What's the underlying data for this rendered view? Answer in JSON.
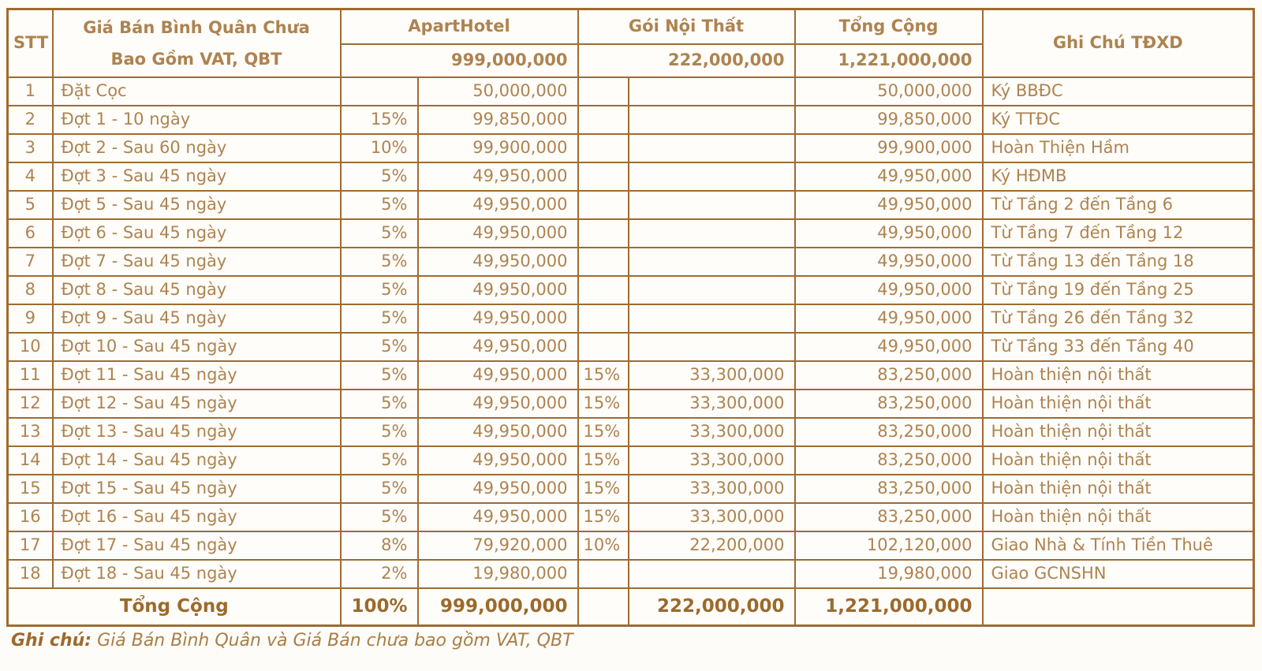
{
  "colors": {
    "border": "#9e6c30",
    "header_text": "#9c6a2b",
    "body_text": "#ae8350",
    "background": "#fefdfa"
  },
  "table": {
    "header": {
      "stt": "STT",
      "desc_line1": "Giá Bán Bình Quân Chưa",
      "desc_line2": "Bao Gồm VAT, QBT",
      "aparthotel_label": "ApartHotel",
      "aparthotel_total": "999,000,000",
      "interior_label": "Gói Nội Thất",
      "interior_total": "222,000,000",
      "grand_label": "Tổng Cộng",
      "grand_total": "1,221,000,000",
      "note_label": "Ghi Chú TĐXD"
    },
    "rows": [
      {
        "stt": "1",
        "desc": "Đặt Cọc",
        "ah_pct": "",
        "ah_amt": "50,000,000",
        "nt_pct": "",
        "nt_amt": "",
        "total": "50,000,000",
        "note": "Ký BBĐC"
      },
      {
        "stt": "2",
        "desc": "Đợt 1 - 10 ngày",
        "ah_pct": "15%",
        "ah_amt": "99,850,000",
        "nt_pct": "",
        "nt_amt": "",
        "total": "99,850,000",
        "note": "Ký TTĐC"
      },
      {
        "stt": "3",
        "desc": "Đợt 2 - Sau 60 ngày",
        "ah_pct": "10%",
        "ah_amt": "99,900,000",
        "nt_pct": "",
        "nt_amt": "",
        "total": "99,900,000",
        "note": "Hoàn Thiện Hầm"
      },
      {
        "stt": "4",
        "desc": "Đợt 3 - Sau 45 ngày",
        "ah_pct": "5%",
        "ah_amt": "49,950,000",
        "nt_pct": "",
        "nt_amt": "",
        "total": "49,950,000",
        "note": "Ký HĐMB"
      },
      {
        "stt": "5",
        "desc": "Đợt 5 - Sau 45 ngày",
        "ah_pct": "5%",
        "ah_amt": "49,950,000",
        "nt_pct": "",
        "nt_amt": "",
        "total": "49,950,000",
        "note": "Từ Tầng 2 đến Tầng 6"
      },
      {
        "stt": "6",
        "desc": "Đợt 6 - Sau 45 ngày",
        "ah_pct": "5%",
        "ah_amt": "49,950,000",
        "nt_pct": "",
        "nt_amt": "",
        "total": "49,950,000",
        "note": "Từ Tầng 7 đến Tầng 12"
      },
      {
        "stt": "7",
        "desc": "Đợt 7 - Sau 45 ngày",
        "ah_pct": "5%",
        "ah_amt": "49,950,000",
        "nt_pct": "",
        "nt_amt": "",
        "total": "49,950,000",
        "note": "Từ Tầng 13 đến Tầng 18"
      },
      {
        "stt": "8",
        "desc": "Đợt 8 - Sau 45 ngày",
        "ah_pct": "5%",
        "ah_amt": "49,950,000",
        "nt_pct": "",
        "nt_amt": "",
        "total": "49,950,000",
        "note": "Từ Tầng 19 đến Tầng 25"
      },
      {
        "stt": "9",
        "desc": "Đợt 9 - Sau 45 ngày",
        "ah_pct": "5%",
        "ah_amt": "49,950,000",
        "nt_pct": "",
        "nt_amt": "",
        "total": "49,950,000",
        "note": "Từ Tầng 26 đến Tầng 32"
      },
      {
        "stt": "10",
        "desc": "Đợt 10 - Sau 45 ngày",
        "ah_pct": "5%",
        "ah_amt": "49,950,000",
        "nt_pct": "",
        "nt_amt": "",
        "total": "49,950,000",
        "note": "Từ Tầng 33 đến Tầng 40"
      },
      {
        "stt": "11",
        "desc": "Đợt 11 - Sau 45 ngày",
        "ah_pct": "5%",
        "ah_amt": "49,950,000",
        "nt_pct": "15%",
        "nt_amt": "33,300,000",
        "total": "83,250,000",
        "note": "Hoàn thiện nội thất"
      },
      {
        "stt": "12",
        "desc": "Đợt 12 - Sau 45 ngày",
        "ah_pct": "5%",
        "ah_amt": "49,950,000",
        "nt_pct": "15%",
        "nt_amt": "33,300,000",
        "total": "83,250,000",
        "note": "Hoàn thiện nội thất"
      },
      {
        "stt": "13",
        "desc": "Đợt 13 - Sau 45 ngày",
        "ah_pct": "5%",
        "ah_amt": "49,950,000",
        "nt_pct": "15%",
        "nt_amt": "33,300,000",
        "total": "83,250,000",
        "note": "Hoàn thiện nội thất"
      },
      {
        "stt": "14",
        "desc": "Đợt 14 - Sau 45 ngày",
        "ah_pct": "5%",
        "ah_amt": "49,950,000",
        "nt_pct": "15%",
        "nt_amt": "33,300,000",
        "total": "83,250,000",
        "note": "Hoàn thiện nội thất"
      },
      {
        "stt": "15",
        "desc": "Đợt 15 - Sau 45 ngày",
        "ah_pct": "5%",
        "ah_amt": "49,950,000",
        "nt_pct": "15%",
        "nt_amt": "33,300,000",
        "total": "83,250,000",
        "note": "Hoàn thiện nội thất"
      },
      {
        "stt": "16",
        "desc": "Đợt 16 - Sau 45 ngày",
        "ah_pct": "5%",
        "ah_amt": "49,950,000",
        "nt_pct": "15%",
        "nt_amt": "33,300,000",
        "total": "83,250,000",
        "note": "Hoàn thiện nội thất"
      },
      {
        "stt": "17",
        "desc": "Đợt 17 - Sau 45 ngày",
        "ah_pct": "8%",
        "ah_amt": "79,920,000",
        "nt_pct": "10%",
        "nt_amt": "22,200,000",
        "total": "102,120,000",
        "note": "Giao Nhà & Tính Tiền Thuê"
      },
      {
        "stt": "18",
        "desc": "Đợt 18 - Sau 45 ngày",
        "ah_pct": "2%",
        "ah_amt": "19,980,000",
        "nt_pct": "",
        "nt_amt": "",
        "total": "19,980,000",
        "note": "Giao GCNSHN"
      }
    ],
    "footer": {
      "label": "Tổng Cộng",
      "ah_pct": "100%",
      "ah_amt": "999,000,000",
      "nt_pct": "",
      "nt_amt": "222,000,000",
      "total": "1,221,000,000",
      "note": ""
    }
  },
  "bottom_note": {
    "label": "Ghi chú:",
    "text": " Giá Bán Bình Quân và Giá Bán chưa bao gồm VAT, QBT"
  }
}
